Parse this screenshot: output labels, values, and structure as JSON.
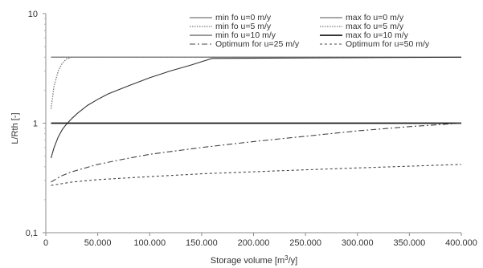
{
  "chart_data": {
    "type": "line",
    "title": "",
    "xlabel": "Storage volume  [m",
    "xlabel_sup": "3",
    "xlabel_tail": "/y]",
    "ylabel": "L/Rth [-]",
    "xlim": [
      0,
      400000
    ],
    "ylim": [
      0.1,
      10
    ],
    "yscale": "log",
    "grid": false,
    "legend_position": "top",
    "x_ticks": [
      {
        "value": 0,
        "label": "0"
      },
      {
        "value": 50000,
        "label": "50.000"
      },
      {
        "value": 100000,
        "label": "100.000"
      },
      {
        "value": 150000,
        "label": "150.000"
      },
      {
        "value": 200000,
        "label": "200.000"
      },
      {
        "value": 250000,
        "label": "250.000"
      },
      {
        "value": 300000,
        "label": "300.000"
      },
      {
        "value": 350000,
        "label": "350.000"
      },
      {
        "value": 400000,
        "label": "400.000"
      }
    ],
    "y_ticks": [
      {
        "value": 0.1,
        "label": "0,1"
      },
      {
        "value": 1,
        "label": "1"
      },
      {
        "value": 10,
        "label": "10"
      }
    ],
    "series": [
      {
        "name": "min fo u=0 m/y",
        "color": "#8c8c8c",
        "dash": "",
        "width": 1.4,
        "x": [
          5000,
          400000
        ],
        "y": [
          4,
          4
        ]
      },
      {
        "name": "max fo u=0 m/y",
        "color": "#8c8c8c",
        "dash": "",
        "width": 1.4,
        "x": [
          5000,
          400000
        ],
        "y": [
          4,
          4
        ]
      },
      {
        "name": "min fo u=5 m/y",
        "color": "#777777",
        "dash": "1.5,1.5",
        "width": 1.3,
        "x": [
          5000,
          8000,
          12000,
          16000,
          20000,
          25000,
          400000
        ],
        "y": [
          1.35,
          2.2,
          3.0,
          3.55,
          3.85,
          4,
          4
        ]
      },
      {
        "name": "max fo u=5 m/y",
        "color": "#777777",
        "dash": "1.5,1.5",
        "width": 1.3,
        "x": [
          5000,
          400000
        ],
        "y": [
          4,
          4
        ]
      },
      {
        "name": "min fo u=10 m/y",
        "color": "#333333",
        "dash": "",
        "width": 1.1,
        "x": [
          5000,
          8000,
          12000,
          16000,
          20000,
          25000,
          30000,
          40000,
          50000,
          60000,
          80000,
          100000,
          120000,
          140000,
          160000,
          400000
        ],
        "y": [
          0.48,
          0.6,
          0.75,
          0.88,
          0.98,
          1.1,
          1.22,
          1.45,
          1.65,
          1.85,
          2.2,
          2.6,
          3.0,
          3.4,
          3.9,
          4
        ]
      },
      {
        "name": "max fo u=10 m/y",
        "color": "#1a1a1a",
        "dash": "",
        "width": 1.8,
        "x": [
          5000,
          400000
        ],
        "y": [
          1,
          1
        ]
      },
      {
        "name": "Optimum for u=25 m/y",
        "color": "#444444",
        "dash": "7,3,2,3",
        "width": 1.1,
        "x": [
          5000,
          15000,
          25000,
          50000,
          75000,
          100000,
          150000,
          200000,
          250000,
          300000,
          350000,
          400000
        ],
        "y": [
          0.29,
          0.33,
          0.36,
          0.42,
          0.47,
          0.52,
          0.6,
          0.68,
          0.76,
          0.85,
          0.93,
          1.0
        ]
      },
      {
        "name": "Optimum for u=50 m/y",
        "color": "#444444",
        "dash": "3,3",
        "width": 1.1,
        "x": [
          5000,
          15000,
          25000,
          50000,
          100000,
          150000,
          200000,
          250000,
          300000,
          350000,
          400000
        ],
        "y": [
          0.27,
          0.28,
          0.29,
          0.305,
          0.325,
          0.345,
          0.36,
          0.375,
          0.39,
          0.405,
          0.42
        ]
      }
    ]
  }
}
